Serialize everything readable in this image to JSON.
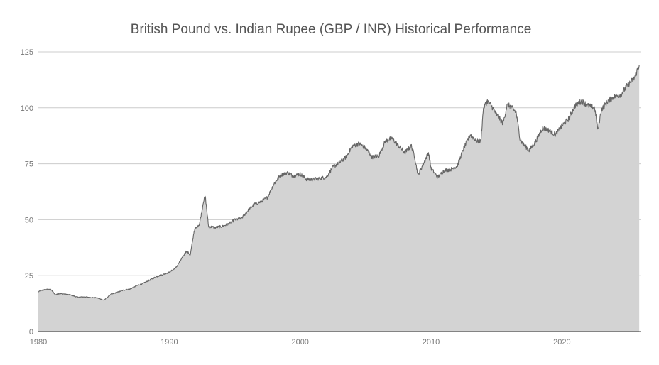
{
  "chart_data": {
    "type": "area",
    "title": "British Pound vs. Indian Rupee (GBP / INR) Historical Performance",
    "xlabel": "",
    "ylabel": "",
    "xlim": [
      1980,
      2026
    ],
    "ylim": [
      0,
      125
    ],
    "x_ticks": [
      "1980",
      "1990",
      "2000",
      "2010",
      "2020"
    ],
    "y_ticks": [
      "0",
      "25",
      "50",
      "75",
      "100",
      "125"
    ],
    "grid": true,
    "legend": "none",
    "series": [
      {
        "color": "#666666",
        "fill": "#d3d3d3",
        "x": [
          1980.0,
          1980.3,
          1980.6,
          1980.9,
          1981.0,
          1981.3,
          1981.6,
          1982.0,
          1982.5,
          1983.0,
          1983.5,
          1984.0,
          1984.5,
          1985.0,
          1985.2,
          1985.5,
          1986.0,
          1986.5,
          1987.0,
          1987.5,
          1988.0,
          1988.5,
          1989.0,
          1989.5,
          1990.0,
          1990.5,
          1991.0,
          1991.3,
          1991.5,
          1991.6,
          1991.9,
          1992.0,
          1992.3,
          1992.5,
          1992.6,
          1992.75,
          1993.0,
          1993.5,
          1994.0,
          1994.5,
          1995.0,
          1995.5,
          1996.0,
          1996.5,
          1997.0,
          1997.5,
          1998.0,
          1998.5,
          1999.0,
          1999.5,
          2000.0,
          2000.5,
          2001.0,
          2001.5,
          2002.0,
          2002.5,
          2003.0,
          2003.5,
          2004.0,
          2004.5,
          2005.0,
          2005.5,
          2006.0,
          2006.5,
          2007.0,
          2007.5,
          2008.0,
          2008.5,
          2008.75,
          2009.0,
          2009.5,
          2009.8,
          2010.0,
          2010.5,
          2011.0,
          2011.5,
          2012.0,
          2012.5,
          2013.0,
          2013.5,
          2013.8,
          2014.0,
          2014.3,
          2014.6,
          2015.0,
          2015.5,
          2015.8,
          2016.0,
          2016.5,
          2016.8,
          2017.0,
          2017.5,
          2018.0,
          2018.5,
          2019.0,
          2019.5,
          2020.0,
          2020.5,
          2021.0,
          2021.5,
          2022.0,
          2022.5,
          2022.75,
          2023.0,
          2023.5,
          2024.0,
          2024.5,
          2025.0,
          2025.5,
          2025.9
        ],
        "y": [
          17.8,
          18.5,
          18.8,
          19.0,
          18.5,
          16.5,
          17.0,
          16.8,
          16.3,
          15.4,
          15.5,
          15.3,
          15.1,
          14.0,
          15.0,
          16.5,
          17.5,
          18.5,
          19.0,
          20.5,
          21.5,
          23.0,
          24.5,
          25.5,
          26.5,
          28.5,
          33.0,
          36.0,
          35.0,
          34.0,
          45.0,
          46.0,
          48.0,
          54.0,
          58.0,
          60.5,
          47.0,
          46.5,
          47.0,
          48.0,
          50.0,
          50.5,
          54.0,
          57.0,
          58.0,
          60.0,
          66.0,
          70.0,
          71.0,
          69.5,
          70.5,
          68.0,
          68.0,
          68.5,
          69.0,
          73.5,
          75.5,
          78.0,
          83.0,
          84.0,
          82.0,
          78.0,
          78.5,
          85.0,
          86.5,
          83.0,
          80.0,
          83.0,
          78.0,
          70.0,
          76.0,
          80.0,
          73.0,
          69.0,
          72.0,
          72.5,
          74.0,
          82.0,
          88.0,
          85.0,
          85.0,
          100.0,
          103.0,
          101.0,
          97.0,
          93.0,
          101.0,
          101.0,
          98.0,
          86.0,
          84.0,
          81.0,
          85.0,
          91.0,
          90.0,
          88.0,
          92.0,
          95.0,
          101.0,
          103.0,
          101.0,
          100.0,
          90.0,
          99.0,
          103.0,
          105.0,
          106.0,
          110.0,
          113.0,
          119.0
        ]
      }
    ]
  }
}
